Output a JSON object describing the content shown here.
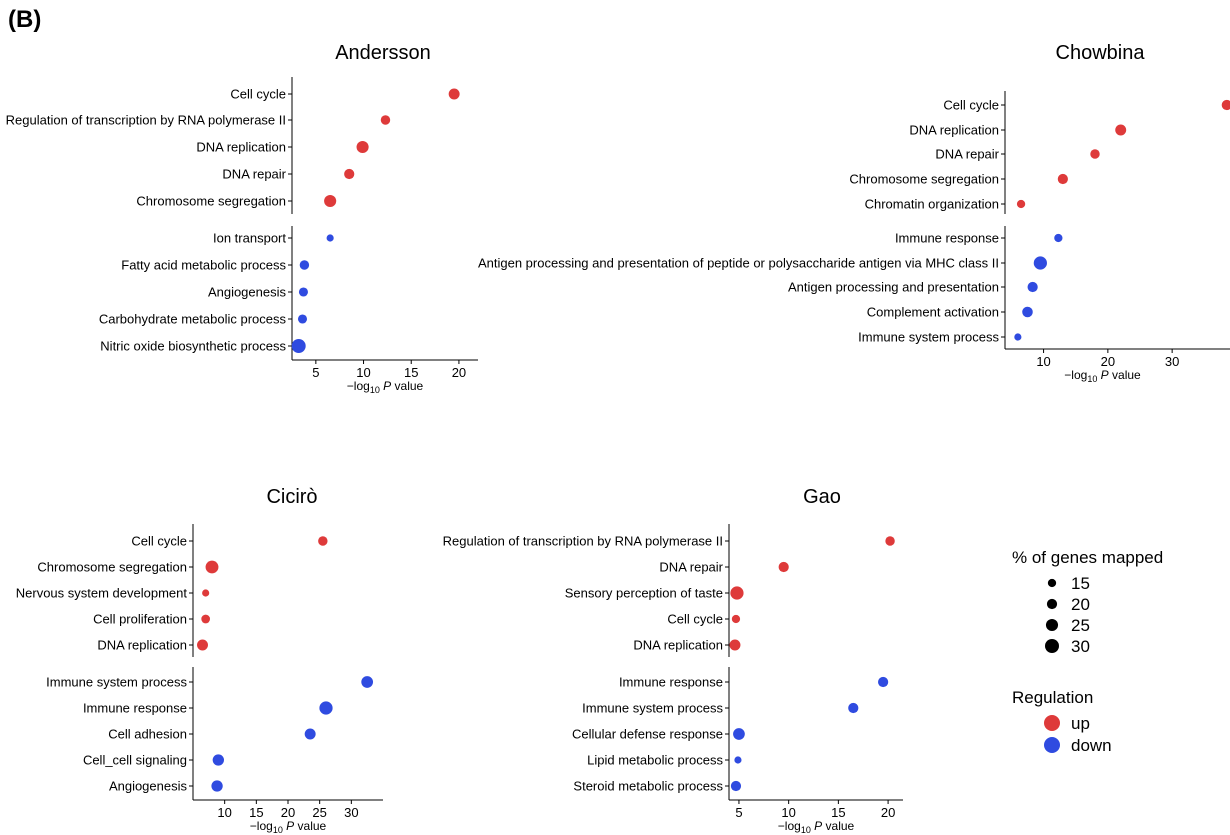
{
  "panel_label": "(B)",
  "x_axis_label_prefix": "−log",
  "x_axis_label_sub": "10",
  "x_axis_label_p": "P",
  "x_axis_label_suffix": " value",
  "colors": {
    "up": "#de3a3a",
    "down": "#2f4be0"
  },
  "chart_data": [
    {
      "type": "scatter",
      "title": "Andersson",
      "xlabel": "−log10 P value",
      "xlim": [
        2.5,
        22
      ],
      "xticks": [
        5,
        10,
        15,
        20
      ],
      "up": [
        {
          "term": "Cell cycle",
          "x": 19.5,
          "pct": 22
        },
        {
          "term": "Regulation of transcription by RNA polymerase II",
          "x": 12.3,
          "pct": 18
        },
        {
          "term": "DNA replication",
          "x": 9.9,
          "pct": 25
        },
        {
          "term": "DNA repair",
          "x": 8.5,
          "pct": 20
        },
        {
          "term": "Chromosome segregation",
          "x": 6.5,
          "pct": 25
        }
      ],
      "down": [
        {
          "term": "Ion transport",
          "x": 6.5,
          "pct": 12
        },
        {
          "term": "Fatty acid metabolic process",
          "x": 3.8,
          "pct": 18
        },
        {
          "term": "Angiogenesis",
          "x": 3.7,
          "pct": 17
        },
        {
          "term": "Carbohydrate metabolic process",
          "x": 3.6,
          "pct": 17
        },
        {
          "term": "Nitric oxide biosynthetic process",
          "x": 3.2,
          "pct": 30
        }
      ]
    },
    {
      "type": "scatter",
      "title": "Chowbina",
      "xlabel": "−log10 P value",
      "xlim": [
        4,
        39
      ],
      "xticks": [
        10,
        20,
        30
      ],
      "up": [
        {
          "term": "Cell cycle",
          "x": 38.5,
          "pct": 20
        },
        {
          "term": "DNA replication",
          "x": 22,
          "pct": 22
        },
        {
          "term": "DNA repair",
          "x": 18,
          "pct": 18
        },
        {
          "term": "Chromosome segregation",
          "x": 13,
          "pct": 20
        },
        {
          "term": "Chromatin organization",
          "x": 6.5,
          "pct": 15
        }
      ],
      "down": [
        {
          "term": "Immune response",
          "x": 12.3,
          "pct": 15
        },
        {
          "term": "Antigen processing and presentation of peptide or polysaccharide antigen via MHC class II",
          "x": 9.5,
          "pct": 28
        },
        {
          "term": "Antigen processing and presentation",
          "x": 8.3,
          "pct": 20
        },
        {
          "term": "Complement activation",
          "x": 7.5,
          "pct": 21
        },
        {
          "term": "Immune system process",
          "x": 6,
          "pct": 12
        }
      ]
    },
    {
      "type": "scatter",
      "title": "Cicirò",
      "xlabel": "−log10 P value",
      "xlim": [
        5,
        35
      ],
      "xticks": [
        10,
        15,
        20,
        25,
        30
      ],
      "up": [
        {
          "term": "Cell cycle",
          "x": 25.5,
          "pct": 18
        },
        {
          "term": "Chromosome segregation",
          "x": 8,
          "pct": 27
        },
        {
          "term": "Nervous system development",
          "x": 7,
          "pct": 12
        },
        {
          "term": "Cell proliferation",
          "x": 7,
          "pct": 16
        },
        {
          "term": "DNA replication",
          "x": 6.5,
          "pct": 22
        }
      ],
      "down": [
        {
          "term": "Immune system process",
          "x": 32.5,
          "pct": 24
        },
        {
          "term": "Immune response",
          "x": 26,
          "pct": 28
        },
        {
          "term": "Cell adhesion",
          "x": 23.5,
          "pct": 22
        },
        {
          "term": "Cell_cell signaling",
          "x": 9,
          "pct": 23
        },
        {
          "term": "Angiogenesis",
          "x": 8.8,
          "pct": 23
        }
      ]
    },
    {
      "type": "scatter",
      "title": "Gao",
      "xlabel": "−log10 P value",
      "xlim": [
        4,
        21.5
      ],
      "xticks": [
        5,
        10,
        15,
        20
      ],
      "up": [
        {
          "term": "Regulation of transcription by RNA polymerase II",
          "x": 20.2,
          "pct": 18
        },
        {
          "term": "DNA repair",
          "x": 9.5,
          "pct": 20
        },
        {
          "term": "Sensory perception of taste",
          "x": 4.8,
          "pct": 28
        },
        {
          "term": "Cell cycle",
          "x": 4.7,
          "pct": 15
        },
        {
          "term": "DNA replication",
          "x": 4.6,
          "pct": 22
        }
      ],
      "down": [
        {
          "term": "Immune response",
          "x": 19.5,
          "pct": 20
        },
        {
          "term": "Immune system process",
          "x": 16.5,
          "pct": 20
        },
        {
          "term": "Cellular defense response",
          "x": 5,
          "pct": 24
        },
        {
          "term": "Lipid metabolic process",
          "x": 4.9,
          "pct": 12
        },
        {
          "term": "Steroid metabolic process",
          "x": 4.7,
          "pct": 20
        }
      ]
    }
  ],
  "legend": {
    "size_title": "% of genes mapped",
    "sizes": [
      15,
      20,
      25,
      30
    ],
    "color_title": "Regulation",
    "colors": [
      {
        "label": "up",
        "key": "up"
      },
      {
        "label": "down",
        "key": "down"
      }
    ]
  }
}
